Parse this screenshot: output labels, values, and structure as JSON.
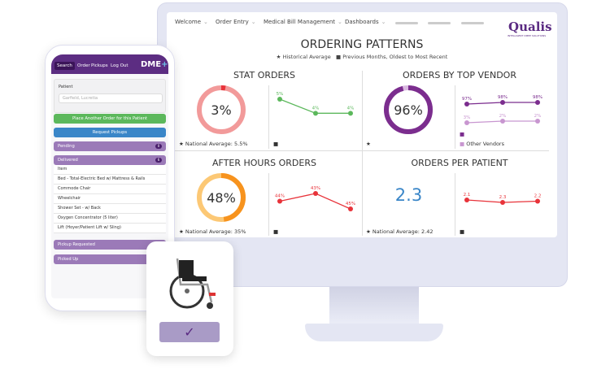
{
  "nav": {
    "items": [
      "Welcome",
      "Order Entry",
      "Medical Bill Management",
      "Dashboards"
    ]
  },
  "logo": {
    "text": "Qualis",
    "tagline": "INTELLIGENT DMEP SOLUTIONS"
  },
  "dashboard": {
    "title": "ORDERING PATTERNS",
    "legend_star": "Historical Average",
    "legend_square": "Previous Months, Oldest to Most Recent",
    "stat": {
      "title": "STAT ORDERS",
      "value": "3%",
      "fraction": 0.03,
      "national": "National Average: 5.5%",
      "trend": [
        5,
        4,
        4
      ],
      "labels": [
        "5%",
        "4%",
        "4%"
      ],
      "color": "#5cb85c",
      "ring": "#f29a9a",
      "accent": "#e8333a"
    },
    "vendor": {
      "title": "ORDERS BY TOP VENDOR",
      "value": "96%",
      "fraction": 0.96,
      "trend_top": [
        97,
        98,
        98
      ],
      "labels_top": [
        "97%",
        "98%",
        "98%"
      ],
      "trend_other": [
        3,
        2,
        2
      ],
      "labels_other": [
        "3%",
        "2%",
        "2%"
      ],
      "other_label": "Other Vendors",
      "color": "#7b2d8e",
      "other_color": "#c896d0"
    },
    "after": {
      "title": "AFTER HOURS ORDERS",
      "value": "48%",
      "fraction": 0.48,
      "national": "National Average: 35%",
      "trend": [
        44,
        43,
        45
      ],
      "labels": [
        "44%",
        "43%",
        "45%"
      ],
      "color": "#e8333a",
      "ring": "#fcc875",
      "accent": "#f7931e"
    },
    "perpatient": {
      "title": "ORDERS PER PATIENT",
      "value": "2.3",
      "national": "National Average: 2.42",
      "trend": [
        2.1,
        2.3,
        2.2
      ],
      "labels": [
        "2.1",
        "2.3",
        "2.2"
      ],
      "color": "#e8333a",
      "value_color": "#3a86c8"
    }
  },
  "phone": {
    "tabs": [
      "Search",
      "Order",
      "Pickups",
      "Log Out"
    ],
    "brand": "DME",
    "patient_label": "Patient",
    "patient_value": "Garfield, Lucretia",
    "place_order": "Place Another Order for this Patient",
    "request_pickups": "Request Pickups",
    "pending": {
      "label": "Pending",
      "count": "0"
    },
    "delivered": {
      "label": "Delivered",
      "count": "6"
    },
    "items": [
      "Item",
      "Bed - Total-Electric Bed w/ Mattress & Rails",
      "Commode Chair",
      "Wheelchair",
      "Shower Set - w/ Back",
      "Oxygen Concentrator (5 liter)",
      "Lift (Hoyer/Patient Lift w/ Sling)"
    ],
    "pickup_requested": "Pickup Requested",
    "picked_up": "Picked Up"
  },
  "card": {
    "icon": "wheelchair-icon",
    "button_icon": "check-icon"
  }
}
